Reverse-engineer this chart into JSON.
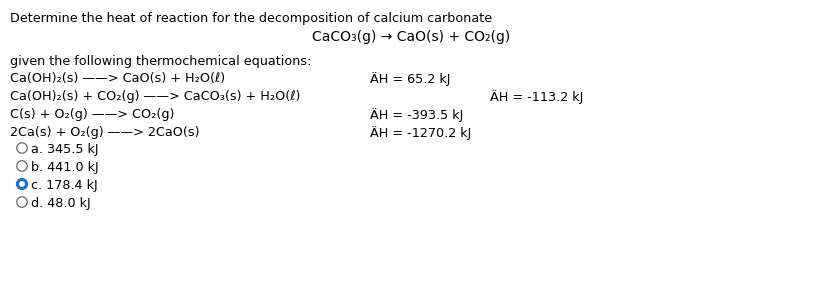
{
  "bg_color": "#ffffff",
  "title_line1": "Determine the heat of reaction for the decomposition of calcium carbonate",
  "title_line2": "CaCO₃(g) → CaO(s) + CO₂(g)",
  "given_text": "given the following thermochemical equations:",
  "eq1_left": "Ca(OH)₂(s) ——> CaO(s) + H₂O(ℓ)",
  "eq1_dh": "ÄH = 65.2 kJ",
  "eq2_left": "Ca(OH)₂(s) + CO₂(g) ——> CaCO₃(s) + H₂O(ℓ)",
  "eq2_dh": "ÄH = -113.2 kJ",
  "eq3_left": "C(s) + O₂(g) ——> CO₂(g)",
  "eq3_dh": "ÄH = -393.5 kJ",
  "eq4_left": "2Ca(s) + O₂(g) ——> 2CaO(s)",
  "eq4_dh": "ÄH = -1270.2 kJ",
  "choice_a": "a. 345.5 kJ",
  "choice_b": "b. 441.0 kJ",
  "choice_c": "c. 178.4 kJ",
  "choice_d": "d. 48.0 kJ",
  "selected": "c",
  "fs": 9.2,
  "fs_title2": 10.0,
  "text_color": "#000000",
  "radio_color_empty": "#666666",
  "radio_color_filled": "#1a6fdf"
}
